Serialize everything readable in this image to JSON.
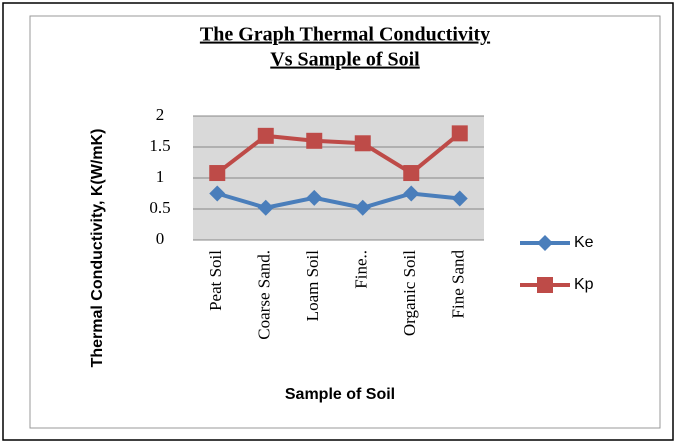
{
  "chart_data": {
    "type": "line",
    "title": [
      "The Graph Thermal Conductivity",
      "Vs Sample of Soil"
    ],
    "x_label": "Sample of Soil",
    "y_label": "Thermal Conductivity, K(W/mK)",
    "categories": [
      "Peat Soil",
      "Coarse Sand.",
      "Loam Soil",
      "Fine..",
      "Organic Soil",
      "Fine Sand"
    ],
    "series": [
      {
        "name": "Ke",
        "color": "#4a7ebb",
        "marker": "diamond",
        "values": [
          0.75,
          0.52,
          0.68,
          0.52,
          0.75,
          0.67
        ]
      },
      {
        "name": "Kp",
        "color": "#be4b48",
        "marker": "square",
        "values": [
          1.08,
          1.68,
          1.6,
          1.56,
          1.08,
          1.72
        ]
      }
    ],
    "ylim": [
      0,
      2
    ],
    "yticks": [
      0,
      0.5,
      1,
      1.5,
      2
    ],
    "grid": true,
    "legend": "right"
  }
}
